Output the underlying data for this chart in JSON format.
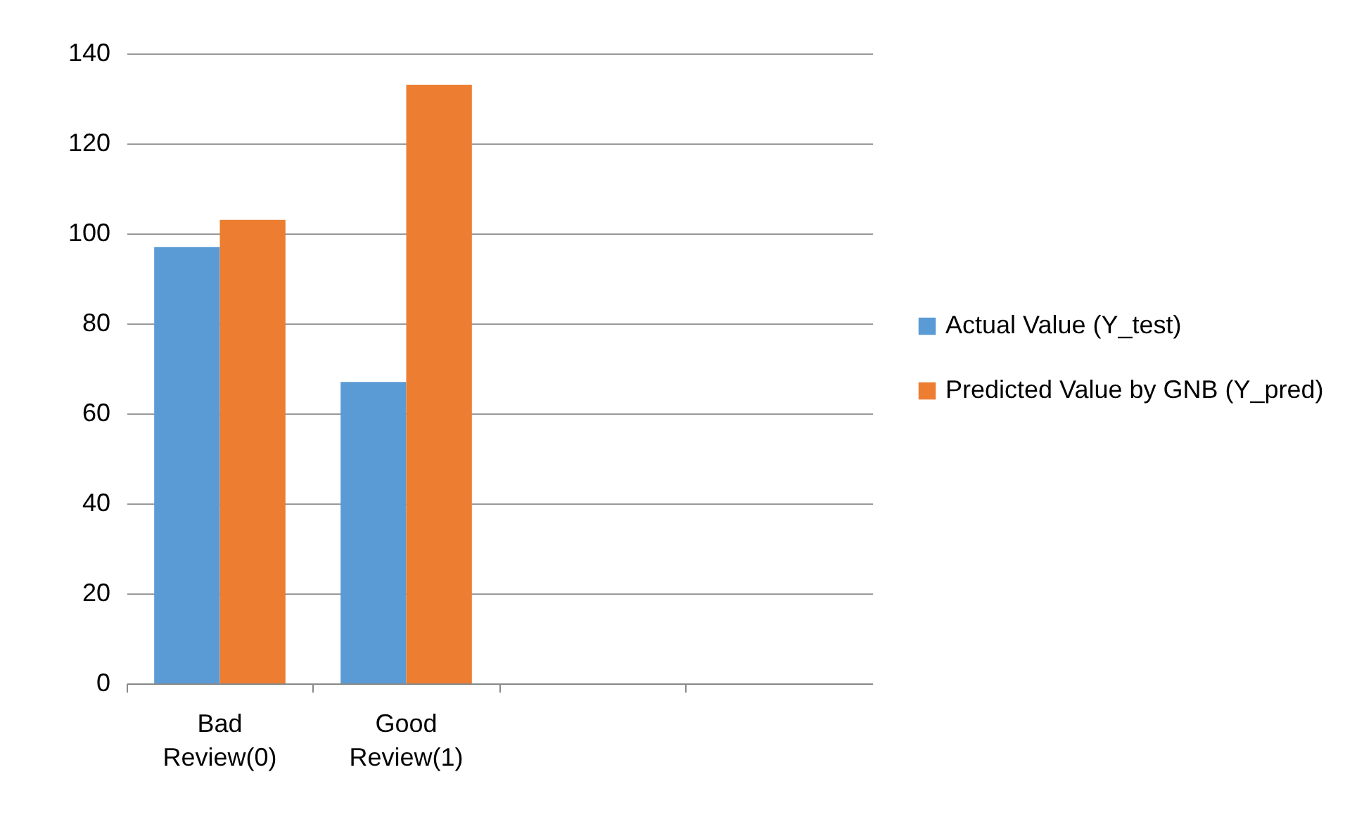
{
  "chart_data": {
    "type": "bar",
    "categories": [
      "Bad Review(0)",
      "Good Review(1)",
      null,
      null
    ],
    "series": [
      {
        "name": "Actual Value (Y_test)",
        "color": "#5b9bd5",
        "values": [
          97,
          67,
          null,
          null
        ]
      },
      {
        "name": "Predicted Value by GNB (Y_pred)",
        "color": "#ed7d31",
        "values": [
          103,
          133,
          null,
          null
        ]
      }
    ],
    "ylim": [
      0,
      140
    ],
    "yticks": [
      0,
      20,
      40,
      60,
      80,
      100,
      120,
      140
    ],
    "grid": true,
    "legend": "right"
  }
}
